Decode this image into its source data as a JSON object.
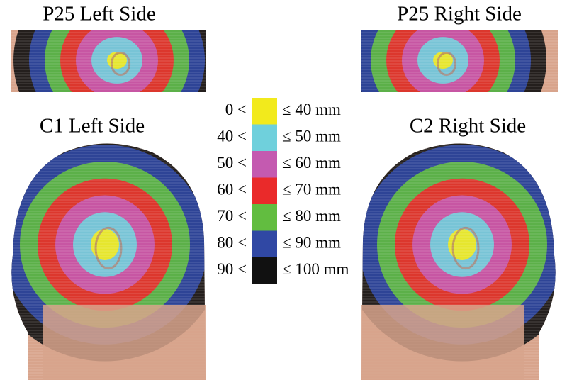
{
  "panels": [
    {
      "title": "P25 Left Side"
    },
    {
      "title": "P25 Right Side"
    },
    {
      "title": "C1 Left Side"
    },
    {
      "title": "C2 Right Side"
    }
  ],
  "legend": {
    "rows": [
      {
        "lower": "0 <",
        "upper": "≤ 40 mm",
        "color": "#f2ea1c"
      },
      {
        "lower": "40 <",
        "upper": "≤ 50 mm",
        "color": "#6fd0dc"
      },
      {
        "lower": "50 <",
        "upper": "≤ 60 mm",
        "color": "#c45ab0"
      },
      {
        "lower": "60 <",
        "upper": "≤ 70 mm",
        "color": "#ea2a2a"
      },
      {
        "lower": "70 <",
        "upper": "≤ 80 mm",
        "color": "#62bd40"
      },
      {
        "lower": "80 <",
        "upper": "≤ 90 mm",
        "color": "#3048a4"
      },
      {
        "lower": "90 <",
        "upper": "≤ 100 mm",
        "color": "#111111"
      }
    ]
  }
}
